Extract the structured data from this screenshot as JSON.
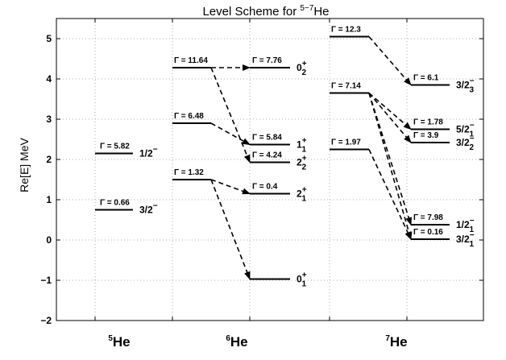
{
  "chart_data": {
    "type": "level-scheme",
    "title": {
      "text": "Level Scheme for ",
      "sup": "5−7",
      "tail": "He"
    },
    "ylabel": "Re[E] MeV",
    "ylim": [
      -2,
      5.5
    ],
    "yticks": [
      "−2",
      "−1",
      "0",
      "1",
      "2",
      "3",
      "4",
      "5"
    ],
    "ytick_values": [
      -2,
      -1,
      0,
      1,
      2,
      3,
      4,
      5
    ],
    "grid": true,
    "nuclei": [
      {
        "id": "5He",
        "mass": "5",
        "symbol": "He"
      },
      {
        "id": "6He",
        "mass": "6",
        "symbol": "He"
      },
      {
        "id": "7He",
        "mass": "7",
        "symbol": "He"
      }
    ],
    "levels": [
      {
        "id": "he5_half",
        "nucleus": "5He",
        "energy": 2.15,
        "gamma": "Γ = 5.82",
        "label": {
          "main": "1/2",
          "sub": "",
          "sup": "−"
        }
      },
      {
        "id": "he5_3half",
        "nucleus": "5He",
        "energy": 0.75,
        "gamma": "Γ = 0.66",
        "label": {
          "main": "3/2",
          "sub": "",
          "sup": "−"
        }
      },
      {
        "id": "he6_l_11",
        "nucleus": "6He",
        "col": "left",
        "energy": 4.28,
        "gamma": "Γ = 11.64"
      },
      {
        "id": "he6_l_6",
        "nucleus": "6He",
        "col": "left",
        "energy": 2.9,
        "gamma": "Γ = 6.48"
      },
      {
        "id": "he6_l_1",
        "nucleus": "6He",
        "col": "left",
        "energy": 1.5,
        "gamma": "Γ = 1.32"
      },
      {
        "id": "he6_r_02",
        "nucleus": "6He",
        "col": "right",
        "energy": 4.28,
        "gamma": "Γ = 7.76",
        "label": {
          "main": "0",
          "sub": "2",
          "sup": "+"
        }
      },
      {
        "id": "he6_r_11",
        "nucleus": "6He",
        "col": "right",
        "energy": 2.37,
        "gamma": "Γ = 5.84",
        "label": {
          "main": "1",
          "sub": "1",
          "sup": "+"
        }
      },
      {
        "id": "he6_r_22",
        "nucleus": "6He",
        "col": "right",
        "energy": 1.93,
        "gamma": "Γ = 4.24",
        "label": {
          "main": "2",
          "sub": "2",
          "sup": "+"
        }
      },
      {
        "id": "he6_r_21",
        "nucleus": "6He",
        "col": "right",
        "energy": 1.15,
        "gamma": "Γ = 0.4",
        "label": {
          "main": "2",
          "sub": "1",
          "sup": "+"
        }
      },
      {
        "id": "he6_r_01",
        "nucleus": "6He",
        "col": "right",
        "energy": -0.97,
        "gamma": "",
        "label": {
          "main": "0",
          "sub": "1",
          "sup": "+"
        }
      },
      {
        "id": "he7_l_12",
        "nucleus": "7He",
        "col": "left",
        "energy": 5.05,
        "gamma": "Γ = 12.3"
      },
      {
        "id": "he7_l_7",
        "nucleus": "7He",
        "col": "left",
        "energy": 3.65,
        "gamma": "Γ = 7.14"
      },
      {
        "id": "he7_l_2",
        "nucleus": "7He",
        "col": "left",
        "energy": 2.25,
        "gamma": "Γ = 1.97"
      },
      {
        "id": "he7_r_323",
        "nucleus": "7He",
        "col": "right",
        "energy": 3.85,
        "gamma": "Γ = 6.1",
        "label": {
          "main": "3/2",
          "sub": "3",
          "sup": "−"
        }
      },
      {
        "id": "he7_r_521",
        "nucleus": "7He",
        "col": "right",
        "energy": 2.75,
        "gamma": "Γ = 1.78",
        "label": {
          "main": "5/2",
          "sub": "1",
          "sup": "−"
        }
      },
      {
        "id": "he7_r_322",
        "nucleus": "7He",
        "col": "right",
        "energy": 2.42,
        "gamma": "Γ = 3.9",
        "label": {
          "main": "3/2",
          "sub": "2",
          "sup": "−"
        }
      },
      {
        "id": "he7_r_121",
        "nucleus": "7He",
        "col": "right",
        "energy": 0.38,
        "gamma": "Γ = 7.98",
        "label": {
          "main": "1/2",
          "sub": "1",
          "sup": "−"
        }
      },
      {
        "id": "he7_r_321",
        "nucleus": "7He",
        "col": "right",
        "energy": 0.02,
        "gamma": "Γ = 0.16",
        "label": {
          "main": "3/2",
          "sub": "1",
          "sup": "−"
        }
      }
    ],
    "transitions": [
      {
        "from": "he6_l_11",
        "to": "he6_r_02"
      },
      {
        "from": "he6_l_11",
        "to": "he6_r_22"
      },
      {
        "from": "he6_l_6",
        "to": "he6_r_11"
      },
      {
        "from": "he6_l_1",
        "to": "he6_r_21"
      },
      {
        "from": "he6_l_1",
        "to": "he6_r_01"
      },
      {
        "from": "he7_l_12",
        "to": "he7_r_323"
      },
      {
        "from": "he7_l_7",
        "to": "he7_r_521"
      },
      {
        "from": "he7_l_7",
        "to": "he7_r_322"
      },
      {
        "from": "he7_l_7",
        "to": "he7_r_121"
      },
      {
        "from": "he7_l_7",
        "to": "he7_r_321"
      },
      {
        "from": "he7_l_2",
        "to": "he7_r_321"
      }
    ]
  }
}
